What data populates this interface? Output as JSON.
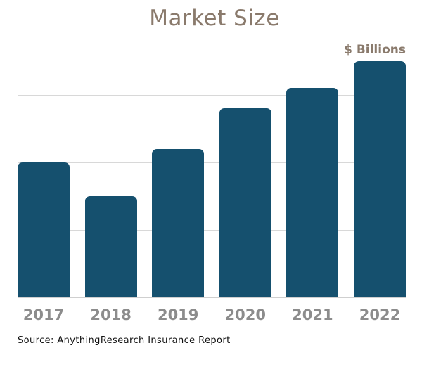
{
  "chart_data": {
    "type": "bar",
    "title": "Market Size",
    "unit_label": "$ Billions",
    "xlabel": "",
    "ylabel": "",
    "categories": [
      "2017",
      "2018",
      "2019",
      "2020",
      "2021",
      "2022"
    ],
    "values": [
      2.0,
      1.5,
      2.2,
      2.8,
      3.1,
      3.5
    ],
    "value_note": "y-axis has no tick labels; values estimated in gridline units (one horizontal gridline interval = 1 unit)",
    "ylim": [
      0,
      4
    ],
    "gridlines_at": [
      1,
      2,
      3
    ],
    "grid": "horizontal-only",
    "legend_position": "none",
    "colors": {
      "bar": "#15506e",
      "title": "#8a7a6c",
      "axis_labels": "#8c8c8c",
      "gridline": "#d8d8d8",
      "axis_line": "#cfcfcf",
      "source_text": "#111111",
      "background": "#ffffff"
    }
  },
  "source": {
    "text": "Source: AnythingResearch Insurance Report"
  }
}
